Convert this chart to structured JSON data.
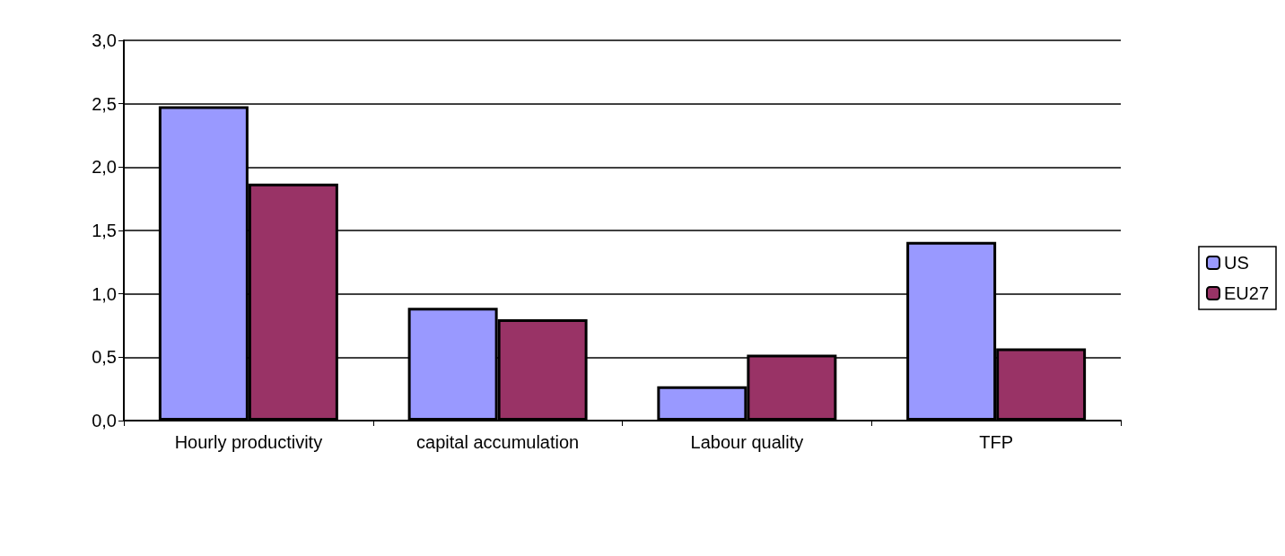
{
  "chart_data": {
    "type": "bar",
    "categories": [
      "Hourly productivity",
      "capital accumulation",
      "Labour quality",
      "TFP"
    ],
    "series": [
      {
        "name": "US",
        "color": "#9999ff",
        "values": [
          2.48,
          0.89,
          0.27,
          1.41
        ]
      },
      {
        "name": "EU27",
        "color": "#993366",
        "values": [
          1.87,
          0.8,
          0.52,
          0.57
        ]
      }
    ],
    "ylim": [
      0,
      3
    ],
    "yticks": [
      {
        "value": 0,
        "label": "0,0"
      },
      {
        "value": 0.5,
        "label": "0,5"
      },
      {
        "value": 1,
        "label": "1,0"
      },
      {
        "value": 1.5,
        "label": "1,5"
      },
      {
        "value": 2,
        "label": "2,0"
      },
      {
        "value": 2.5,
        "label": "2,5"
      },
      {
        "value": 3,
        "label": "3,0"
      }
    ],
    "grid": "y",
    "legend": "right"
  }
}
